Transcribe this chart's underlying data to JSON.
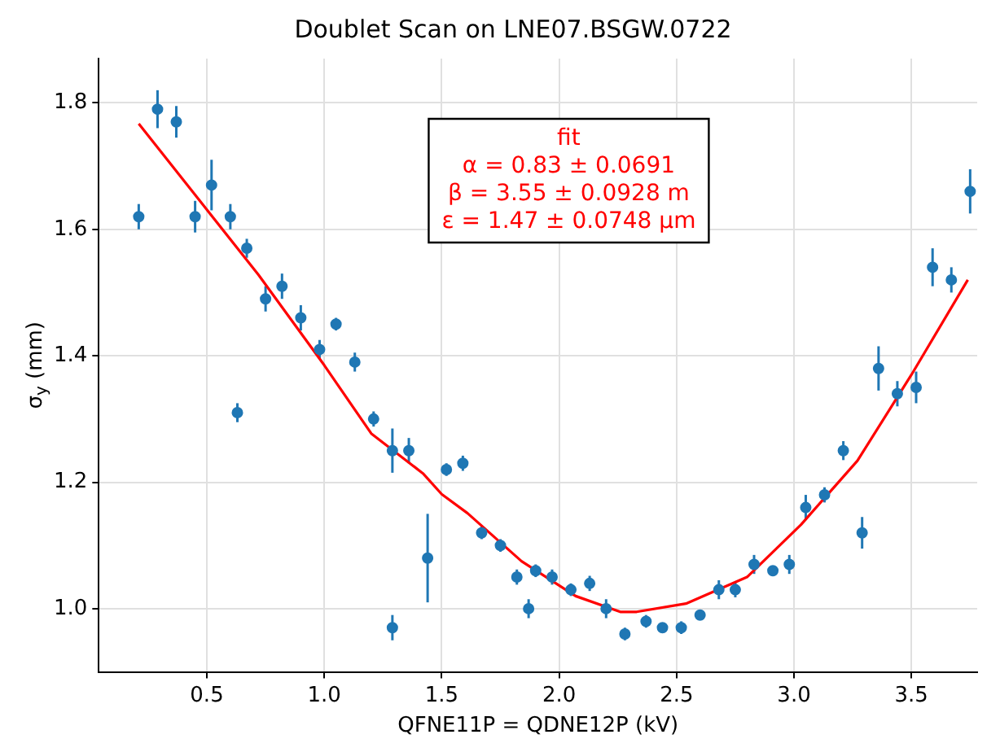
{
  "chart_data": {
    "type": "scatter",
    "title": "Doublet Scan on LNE07.BSGW.0722",
    "xlabel": "QFNE11P = QDNE12P (kV)",
    "ylabel": "σ$_{y}$ (mm)",
    "annotations": [
      "α = 0.83 ± 0.0691",
      "β = 3.55 ± 0.0928 m",
      "ε = 1.47 ± 0.0748 μm"
    ],
    "xlim": [
      0.04,
      3.78
    ],
    "ylim": [
      0.9,
      1.87
    ],
    "xticks": [
      0.5,
      {
        "value": 1,
        "label": "1.0"
      },
      1.5,
      {
        "value": 2,
        "label": "2.0"
      },
      2.5,
      {
        "value": 3,
        "label": "3.0"
      },
      3.5
    ],
    "yticks": [
      {
        "value": 1,
        "label": "1.0"
      },
      1.2,
      1.4,
      1.6,
      1.8
    ],
    "grid": true,
    "legend": false,
    "marker": "circle",
    "series": [
      {
        "color": "#1f77b4",
        "x": [
          0.21,
          0.29,
          0.37,
          0.45,
          0.52,
          0.6,
          0.63,
          0.67,
          0.75,
          0.82,
          0.9,
          0.98,
          1.05,
          1.13,
          1.21,
          1.29,
          1.29,
          1.36,
          1.44,
          1.52,
          1.59,
          1.67,
          1.75,
          1.82,
          1.87,
          1.9,
          1.97,
          2.05,
          2.13,
          2.2,
          2.28,
          2.37,
          2.44,
          2.52,
          2.6,
          2.68,
          2.75,
          2.83,
          2.91,
          2.98,
          3.05,
          3.13,
          3.21,
          3.29,
          3.36,
          3.44,
          3.52,
          3.59,
          3.67,
          3.75
        ],
        "values": [
          1.62,
          1.79,
          1.77,
          1.62,
          1.67,
          1.62,
          1.31,
          1.57,
          1.49,
          1.51,
          1.46,
          1.41,
          1.45,
          1.39,
          1.3,
          1.25,
          0.97,
          1.25,
          1.08,
          1.22,
          1.23,
          1.12,
          1.1,
          1.05,
          1.0,
          1.06,
          1.05,
          1.03,
          1.04,
          1.0,
          0.96,
          0.98,
          0.97,
          0.97,
          0.99,
          1.03,
          1.03,
          1.07,
          1.06,
          1.07,
          1.16,
          1.18,
          1.25,
          1.12,
          1.38,
          1.34,
          1.35,
          1.54,
          1.52,
          1.66
        ],
        "errors": [
          0.02,
          0.03,
          0.025,
          0.025,
          0.04,
          0.02,
          0.015,
          0.015,
          0.02,
          0.02,
          0.02,
          0.015,
          0.01,
          0.015,
          0.012,
          0.035,
          0.02,
          0.02,
          0.07,
          0.01,
          0.012,
          0.01,
          0.01,
          0.012,
          0.015,
          0.01,
          0.012,
          0.01,
          0.012,
          0.015,
          0.01,
          0.01,
          0.008,
          0.01,
          0.008,
          0.015,
          0.012,
          0.015,
          0.008,
          0.015,
          0.02,
          0.012,
          0.015,
          0.025,
          0.035,
          0.02,
          0.025,
          0.03,
          0.02,
          0.035
        ]
      },
      {
        "type": "line",
        "name": "fit",
        "color": "#ff0000",
        "marker": "none",
        "line_style": "solid",
        "x": [
          0.21,
          0.72,
          1.0,
          1.2,
          1.42,
          1.5,
          1.61,
          1.84,
          2.07,
          2.26,
          2.33,
          2.54,
          2.8,
          3.03,
          3.27,
          3.5,
          3.74
        ],
        "values": [
          1.767,
          1.528,
          1.385,
          1.277,
          1.214,
          1.181,
          1.151,
          1.075,
          1.02,
          0.995,
          0.995,
          1.008,
          1.05,
          1.133,
          1.234,
          1.37,
          1.52
        ]
      }
    ]
  }
}
